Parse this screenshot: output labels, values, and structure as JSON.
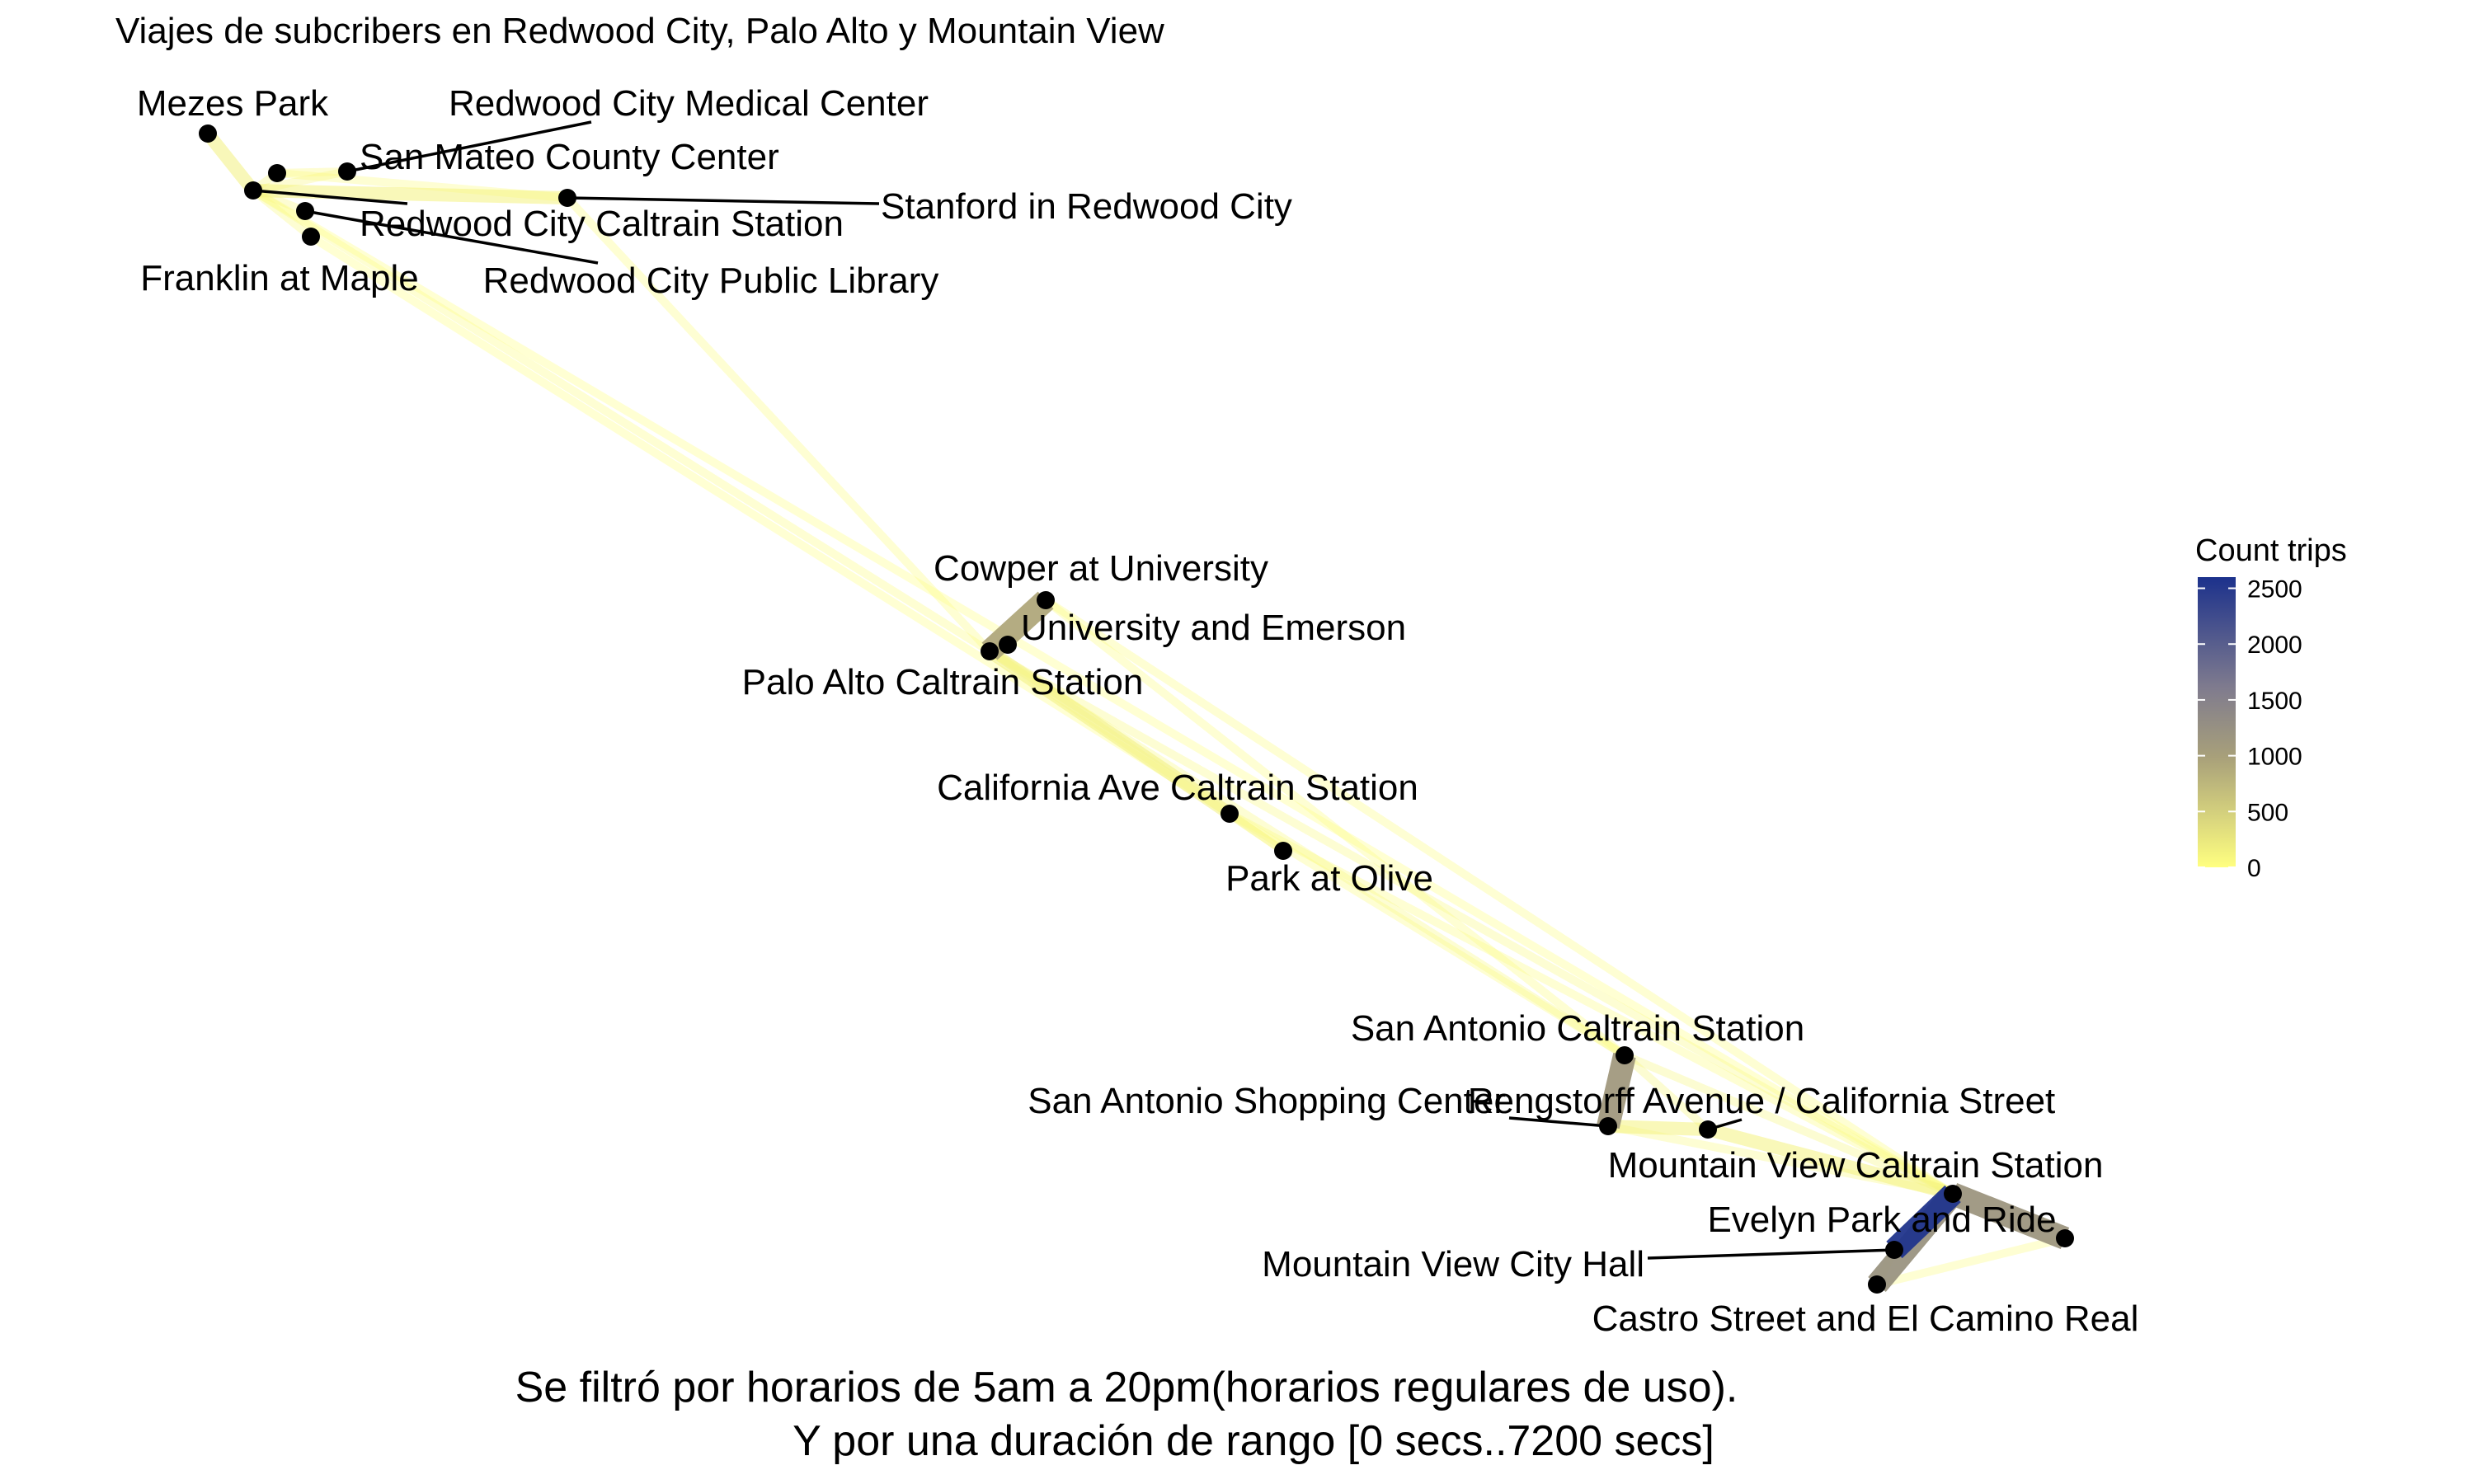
{
  "chart_data": {
    "type": "network-map",
    "title": "Viajes de subcribers en Redwood City, Palo Alto y Mountain View",
    "caption_lines": [
      "Se filtró por horarios de 5am a 20pm(horarios regulares de uso).",
      "Y por una duración de rango [0 secs..7200 secs]"
    ],
    "legend": {
      "title": "Count trips",
      "placement": "right",
      "ticks": [
        0,
        500,
        1000,
        1500,
        2000,
        2500
      ],
      "range": [
        0,
        2600
      ],
      "colors": [
        "#FFFF80",
        "#A8A07A",
        "#7F7B8E",
        "#1C318C"
      ]
    },
    "stations": [
      {
        "id": "mezes",
        "name": "Mezes Park"
      },
      {
        "id": "rwc_med",
        "name": "Redwood City Medical Center"
      },
      {
        "id": "smcc",
        "name": "San Mateo County Center"
      },
      {
        "id": "stanford_rwc",
        "name": "Stanford in Redwood City"
      },
      {
        "id": "rwc_caltrain",
        "name": "Redwood City Caltrain Station"
      },
      {
        "id": "rwc_lib",
        "name": "Redwood City Public Library"
      },
      {
        "id": "franklin",
        "name": "Franklin at Maple"
      },
      {
        "id": "cowper",
        "name": "Cowper at University"
      },
      {
        "id": "univ_emerson",
        "name": "University and Emerson"
      },
      {
        "id": "pa_caltrain",
        "name": "Palo Alto Caltrain Station"
      },
      {
        "id": "cal_ave",
        "name": "California Ave Caltrain Station"
      },
      {
        "id": "park_olive",
        "name": "Park at Olive"
      },
      {
        "id": "sa_caltrain",
        "name": "San Antonio Caltrain Station"
      },
      {
        "id": "sa_shop",
        "name": "San Antonio Shopping Center"
      },
      {
        "id": "rengstorff",
        "name": "Rengstorff Avenue / California Street"
      },
      {
        "id": "mv_caltrain",
        "name": "Mountain View Caltrain Station"
      },
      {
        "id": "evelyn",
        "name": "Evelyn Park and Ride"
      },
      {
        "id": "mv_cityhall",
        "name": "Mountain View City Hall"
      },
      {
        "id": "castro",
        "name": "Castro Street and El Camino Real"
      }
    ],
    "flows": [
      {
        "from": "mv_caltrain",
        "to": "mv_cityhall",
        "count": 2550
      },
      {
        "from": "mv_caltrain",
        "to": "castro",
        "count": 1200
      },
      {
        "from": "mv_caltrain",
        "to": "evelyn",
        "count": 1150
      },
      {
        "from": "sa_caltrain",
        "to": "sa_shop",
        "count": 1100
      },
      {
        "from": "pa_caltrain",
        "to": "cowper",
        "count": 900
      },
      {
        "from": "pa_caltrain",
        "to": "univ_emerson",
        "count": 300
      },
      {
        "from": "pa_caltrain",
        "to": "cal_ave",
        "count": 150
      },
      {
        "from": "pa_caltrain",
        "to": "park_olive",
        "count": 90
      },
      {
        "from": "cal_ave",
        "to": "park_olive",
        "count": 80
      },
      {
        "from": "pa_caltrain",
        "to": "sa_caltrain",
        "count": 70
      },
      {
        "from": "pa_caltrain",
        "to": "mv_caltrain",
        "count": 60
      },
      {
        "from": "sa_caltrain",
        "to": "rengstorff",
        "count": 90
      },
      {
        "from": "sa_shop",
        "to": "rengstorff",
        "count": 120
      },
      {
        "from": "rengstorff",
        "to": "mv_caltrain",
        "count": 120
      },
      {
        "from": "sa_caltrain",
        "to": "mv_caltrain",
        "count": 90
      },
      {
        "from": "sa_shop",
        "to": "mv_caltrain",
        "count": 60
      },
      {
        "from": "mv_cityhall",
        "to": "castro",
        "count": 40
      },
      {
        "from": "evelyn",
        "to": "castro",
        "count": 40
      },
      {
        "from": "cal_ave",
        "to": "sa_caltrain",
        "count": 40
      },
      {
        "from": "cal_ave",
        "to": "mv_caltrain",
        "count": 30
      },
      {
        "from": "cowper",
        "to": "mv_caltrain",
        "count": 25
      },
      {
        "from": "cowper",
        "to": "sa_caltrain",
        "count": 25
      },
      {
        "from": "rwc_caltrain",
        "to": "mezes",
        "count": 150
      },
      {
        "from": "rwc_caltrain",
        "to": "stanford_rwc",
        "count": 120
      },
      {
        "from": "rwc_caltrain",
        "to": "smcc",
        "count": 100
      },
      {
        "from": "rwc_caltrain",
        "to": "rwc_med",
        "count": 80
      },
      {
        "from": "rwc_caltrain",
        "to": "rwc_lib",
        "count": 80
      },
      {
        "from": "rwc_caltrain",
        "to": "franklin",
        "count": 60
      },
      {
        "from": "smcc",
        "to": "rwc_med",
        "count": 50
      },
      {
        "from": "smcc",
        "to": "stanford_rwc",
        "count": 40
      },
      {
        "from": "rwc_caltrain",
        "to": "pa_caltrain",
        "count": 30
      },
      {
        "from": "stanford_rwc",
        "to": "pa_caltrain",
        "count": 20
      },
      {
        "from": "franklin",
        "to": "cal_ave",
        "count": 15
      },
      {
        "from": "rwc_caltrain",
        "to": "mv_caltrain",
        "count": 15
      }
    ]
  }
}
